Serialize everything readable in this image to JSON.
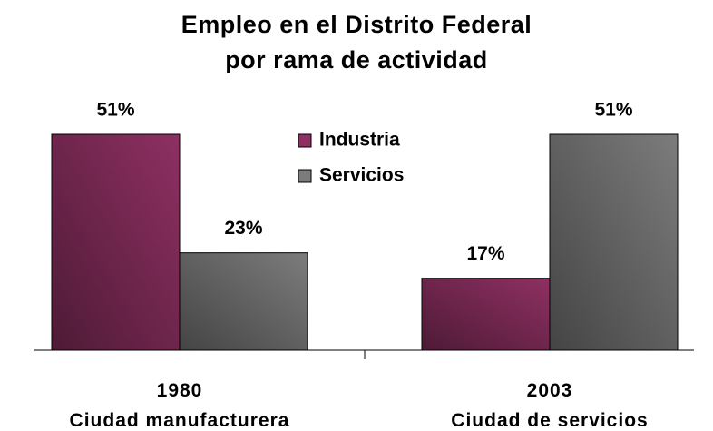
{
  "chart_data": {
    "type": "bar",
    "title": "Empleo en el Distrito Federal\npor rama de actividad",
    "categories": [
      "1980\nCiudad manufacturera",
      "2003\nCiudad de servicios"
    ],
    "series": [
      {
        "name": "Industria",
        "color": "#8e3062",
        "values": [
          51,
          17
        ],
        "value_labels": [
          "51%",
          "17%"
        ]
      },
      {
        "name": "Servicios",
        "color": "#7c7c7c",
        "values": [
          23,
          51
        ],
        "value_labels": [
          "23%",
          "51%"
        ]
      }
    ],
    "ylim": [
      0,
      60
    ],
    "legend": "top"
  }
}
